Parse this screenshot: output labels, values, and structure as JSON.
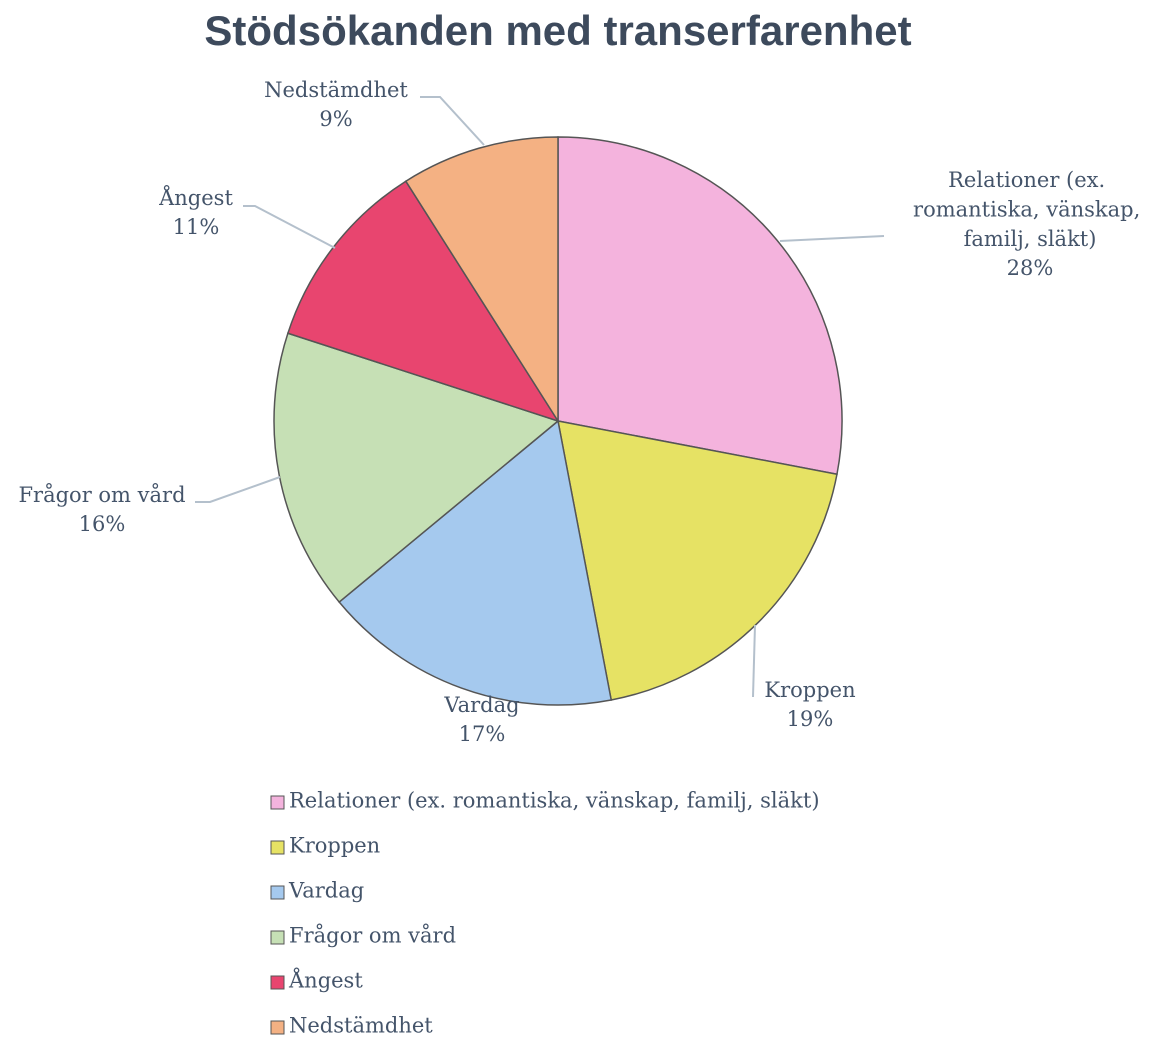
{
  "chart_data": {
    "type": "pie",
    "title": "Stödsökanden med transerfarenhet",
    "categories": [
      "Relationer (ex. romantiska, vänskap, familj, släkt)",
      "Kroppen",
      "Vardag",
      "Frågor om vård",
      "Ångest",
      "Nedstämdhet"
    ],
    "values": [
      28,
      19,
      17,
      16,
      11,
      9
    ],
    "value_labels": [
      "28%",
      "19%",
      "17%",
      "16%",
      "11%",
      "9%"
    ],
    "colors": [
      "#f4b3dd",
      "#e6e264",
      "#a5c9ee",
      "#c6e0b5",
      "#e8456f",
      "#f4b183"
    ],
    "legend": "bottom"
  }
}
